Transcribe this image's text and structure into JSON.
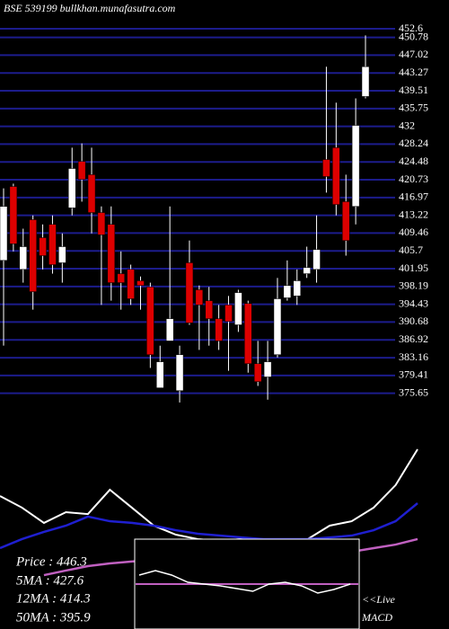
{
  "chart_data": [
    {
      "type": "candlestick",
      "title": "BSE 539199 bullkhan.munafasutra.com",
      "open": [
        403.7,
        419.3,
        401.8,
        412.3,
        408.5,
        411.3,
        403.2,
        414.8,
        424.6,
        421.8,
        413.8,
        411.3,
        400.9,
        401.8,
        399.4,
        398.1,
        376.8,
        386.7,
        376.2,
        403.2,
        397.5,
        395.2,
        391.4,
        394.3,
        390.1,
        394.6,
        381.9,
        379.1,
        383.8,
        395.8,
        396.2,
        400.9,
        401.8,
        425.0,
        427.5,
        416.1,
        415.1,
        438.3
      ],
      "high": [
        418.9,
        419.9,
        410.4,
        413.2,
        411.3,
        413.2,
        409.4,
        427.5,
        428.4,
        427.5,
        415.1,
        415.1,
        405.6,
        402.8,
        400.3,
        399.0,
        385.7,
        415.1,
        385.7,
        407.9,
        398.4,
        398.1,
        394.3,
        396.2,
        397.5,
        395.2,
        386.7,
        386.7,
        400.0,
        403.7,
        401.8,
        406.6,
        413.2,
        444.6,
        437.0,
        421.8,
        437.9,
        451.2
      ],
      "low": [
        385.7,
        405.6,
        399.0,
        393.3,
        401.8,
        400.9,
        399.0,
        413.2,
        416.1,
        409.4,
        394.3,
        395.2,
        393.3,
        394.3,
        393.3,
        381.0,
        376.8,
        386.7,
        373.7,
        390.1,
        384.8,
        385.7,
        384.8,
        380.4,
        388.6,
        380.0,
        377.2,
        374.3,
        383.2,
        395.2,
        394.3,
        400.0,
        399.0,
        418.0,
        413.2,
        404.7,
        411.3,
        437.9
      ],
      "close": [
        415.1,
        407.2,
        406.6,
        397.1,
        404.7,
        402.8,
        406.6,
        423.1,
        420.8,
        413.8,
        409.1,
        399.0,
        399.0,
        395.6,
        398.4,
        383.8,
        382.3,
        391.4,
        383.8,
        390.5,
        394.3,
        391.4,
        386.7,
        390.8,
        396.9,
        381.9,
        378.1,
        382.3,
        395.6,
        398.4,
        399.4,
        402.2,
        406.0,
        421.4,
        415.5,
        407.9,
        432.2,
        444.6
      ],
      "up_color": "#ffffff",
      "down_color": "#dd0000",
      "grid_color": "#1c1c8c",
      "ylim": [
        373.5,
        454.5
      ],
      "yticks": [
        452.6,
        450.78,
        447.02,
        443.27,
        439.51,
        435.75,
        432,
        428.24,
        424.48,
        420.73,
        416.97,
        413.22,
        409.46,
        405.7,
        401.95,
        398.19,
        394.43,
        390.68,
        386.92,
        383.16,
        379.41,
        375.65
      ],
      "grid": true
    },
    {
      "type": "line",
      "ylim": [
        -18,
        100
      ],
      "annotations": [
        "Price   : 446.3",
        "5MA    : 427.6",
        "12MA  : 414.3",
        "50MA  : 395.9"
      ],
      "series": [
        {
          "color": "#ffffff",
          "values": [
            40,
            32.4,
            22.4,
            29.4,
            28.2,
            44.1,
            32.4,
            20.6,
            14.7,
            11.8,
            10.6,
            11.8,
            10,
            11.8,
            11.8,
            20.6,
            23.5,
            32.4,
            47.1,
            70.6
          ]
        },
        {
          "color": "#1f1fd0",
          "values": [
            5.9,
            11.8,
            16.5,
            20.6,
            26.5,
            23.5,
            22.4,
            20.6,
            17.6,
            15.3,
            14.1,
            12.9,
            11.8,
            11.8,
            11.8,
            12.9,
            14.1,
            17.6,
            23.5,
            35.3
          ]
        },
        {
          "color": "#c060c0",
          "values": [
            null,
            null,
            -11.8,
            -8.8,
            -5.9,
            -4.1,
            -2.9,
            -1.8,
            -1.2,
            -0.6,
            0,
            0,
            0.6,
            1.2,
            1.2,
            2.4,
            3.5,
            5.9,
            8.2,
            11.8
          ]
        }
      ]
    },
    {
      "type": "macd",
      "title": "MACD",
      "subtitle": "<<Live",
      "ylim": [
        -50,
        50
      ],
      "zero_line": 0,
      "line_color": "#ffffff",
      "zero_color": "#c060c0",
      "values": [
        10,
        15,
        10,
        2,
        0,
        -2,
        -5,
        -8,
        0,
        2,
        -2,
        -10,
        -6,
        0
      ]
    }
  ]
}
